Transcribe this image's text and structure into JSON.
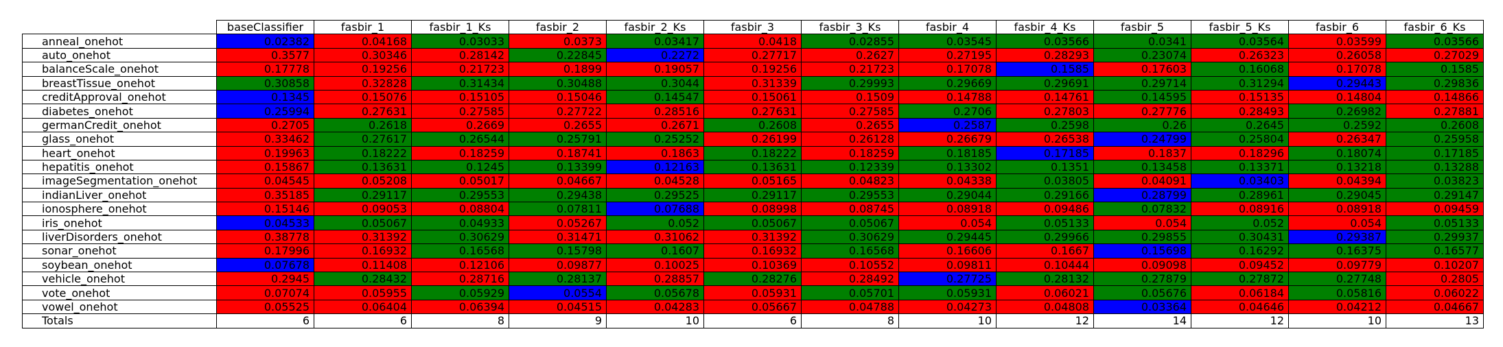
{
  "chart_data": {
    "type": "table",
    "corner": "",
    "columns": [
      "baseClassifier",
      "fasbir_1",
      "fasbir_1_Ks",
      "fasbir_2",
      "fasbir_2_Ks",
      "fasbir_3",
      "fasbir_3_Ks",
      "fasbir_4",
      "fasbir_4_Ks",
      "fasbir_5",
      "fasbir_5_Ks",
      "fasbir_6",
      "fasbir_6_Ks"
    ],
    "rows": [
      {
        "label": "anneal_onehot",
        "values": [
          "0.02382",
          "0.04168",
          "0.03033",
          "0.0373",
          "0.03417",
          "0.0418",
          "0.02855",
          "0.03545",
          "0.03566",
          "0.0341",
          "0.03564",
          "0.03599",
          "0.03566"
        ],
        "colors": [
          "blue",
          "red",
          "green",
          "red",
          "green",
          "red",
          "green",
          "green",
          "green",
          "green",
          "green",
          "red",
          "green"
        ]
      },
      {
        "label": "auto_onehot",
        "values": [
          "0.3577",
          "0.30346",
          "0.28142",
          "0.22845",
          "0.2272",
          "0.27717",
          "0.2627",
          "0.27195",
          "0.28293",
          "0.23074",
          "0.26323",
          "0.26058",
          "0.27029"
        ],
        "colors": [
          "red",
          "red",
          "red",
          "green",
          "blue",
          "red",
          "red",
          "red",
          "red",
          "green",
          "red",
          "red",
          "red"
        ]
      },
      {
        "label": "balanceScale_onehot",
        "values": [
          "0.17778",
          "0.19256",
          "0.21723",
          "0.1899",
          "0.19057",
          "0.19256",
          "0.21723",
          "0.17078",
          "0.1585",
          "0.17603",
          "0.16068",
          "0.17078",
          "0.1585"
        ],
        "colors": [
          "red",
          "red",
          "red",
          "red",
          "red",
          "red",
          "red",
          "red",
          "blue",
          "red",
          "green",
          "red",
          "green"
        ]
      },
      {
        "label": "breastTissue_onehot",
        "values": [
          "0.30858",
          "0.32828",
          "0.31434",
          "0.30488",
          "0.3044",
          "0.31339",
          "0.29993",
          "0.29669",
          "0.29691",
          "0.29714",
          "0.31294",
          "0.29443",
          "0.29836"
        ],
        "colors": [
          "green",
          "red",
          "green",
          "green",
          "green",
          "red",
          "green",
          "green",
          "green",
          "green",
          "green",
          "blue",
          "green"
        ]
      },
      {
        "label": "creditApproval_onehot",
        "values": [
          "0.1345",
          "0.15076",
          "0.15105",
          "0.15046",
          "0.14547",
          "0.15061",
          "0.1509",
          "0.14788",
          "0.14761",
          "0.14595",
          "0.15135",
          "0.14804",
          "0.14866"
        ],
        "colors": [
          "blue",
          "red",
          "red",
          "red",
          "green",
          "red",
          "red",
          "red",
          "red",
          "green",
          "red",
          "red",
          "red"
        ]
      },
      {
        "label": "diabetes_onehot",
        "values": [
          "0.25994",
          "0.27631",
          "0.27585",
          "0.27722",
          "0.28516",
          "0.27631",
          "0.27585",
          "0.2706",
          "0.27803",
          "0.27776",
          "0.28493",
          "0.26982",
          "0.27881"
        ],
        "colors": [
          "blue",
          "red",
          "red",
          "red",
          "red",
          "red",
          "red",
          "green",
          "red",
          "red",
          "red",
          "green",
          "red"
        ]
      },
      {
        "label": "germanCredit_onehot",
        "values": [
          "0.2705",
          "0.2618",
          "0.2669",
          "0.2655",
          "0.2671",
          "0.2608",
          "0.2655",
          "0.2587",
          "0.2598",
          "0.26",
          "0.2645",
          "0.2592",
          "0.2608"
        ],
        "colors": [
          "red",
          "green",
          "red",
          "red",
          "red",
          "green",
          "red",
          "blue",
          "green",
          "green",
          "green",
          "green",
          "green"
        ]
      },
      {
        "label": "glass_onehot",
        "values": [
          "0.33462",
          "0.27617",
          "0.26544",
          "0.25791",
          "0.25252",
          "0.26199",
          "0.26128",
          "0.26679",
          "0.26538",
          "0.24799",
          "0.25804",
          "0.26347",
          "0.25958"
        ],
        "colors": [
          "red",
          "green",
          "green",
          "green",
          "green",
          "red",
          "red",
          "red",
          "red",
          "blue",
          "green",
          "red",
          "green"
        ]
      },
      {
        "label": "heart_onehot",
        "values": [
          "0.19963",
          "0.18222",
          "0.18259",
          "0.18741",
          "0.1863",
          "0.18222",
          "0.18259",
          "0.18185",
          "0.17185",
          "0.1837",
          "0.18296",
          "0.18074",
          "0.17185"
        ],
        "colors": [
          "red",
          "green",
          "red",
          "red",
          "red",
          "green",
          "red",
          "green",
          "blue",
          "red",
          "red",
          "green",
          "green"
        ]
      },
      {
        "label": "hepatitis_onehot",
        "values": [
          "0.15867",
          "0.13631",
          "0.1245",
          "0.13399",
          "0.12163",
          "0.13631",
          "0.12339",
          "0.13302",
          "0.1351",
          "0.13458",
          "0.13371",
          "0.13218",
          "0.13288"
        ],
        "colors": [
          "red",
          "green",
          "green",
          "green",
          "blue",
          "green",
          "green",
          "green",
          "green",
          "green",
          "green",
          "green",
          "green"
        ]
      },
      {
        "label": "imageSegmentation_onehot",
        "values": [
          "0.04545",
          "0.05208",
          "0.05017",
          "0.04667",
          "0.04528",
          "0.05165",
          "0.04823",
          "0.04338",
          "0.03805",
          "0.04091",
          "0.03403",
          "0.04394",
          "0.03823"
        ],
        "colors": [
          "red",
          "red",
          "red",
          "red",
          "red",
          "red",
          "red",
          "red",
          "green",
          "red",
          "blue",
          "red",
          "green"
        ]
      },
      {
        "label": "indianLiver_onehot",
        "values": [
          "0.35185",
          "0.29117",
          "0.29553",
          "0.29438",
          "0.29525",
          "0.29117",
          "0.29553",
          "0.29044",
          "0.29166",
          "0.28799",
          "0.28961",
          "0.29045",
          "0.29147"
        ],
        "colors": [
          "red",
          "green",
          "green",
          "green",
          "green",
          "green",
          "green",
          "green",
          "green",
          "blue",
          "green",
          "green",
          "green"
        ]
      },
      {
        "label": "ionosphere_onehot",
        "values": [
          "0.15146",
          "0.09053",
          "0.08804",
          "0.07811",
          "0.07688",
          "0.08998",
          "0.08745",
          "0.08918",
          "0.09486",
          "0.07832",
          "0.08916",
          "0.08918",
          "0.09459"
        ],
        "colors": [
          "red",
          "red",
          "red",
          "green",
          "blue",
          "red",
          "red",
          "red",
          "red",
          "green",
          "red",
          "red",
          "red"
        ]
      },
      {
        "label": "iris_onehot",
        "values": [
          "0.04533",
          "0.05067",
          "0.04933",
          "0.05267",
          "0.052",
          "0.05067",
          "0.05067",
          "0.054",
          "0.05133",
          "0.054",
          "0.052",
          "0.054",
          "0.05133"
        ],
        "colors": [
          "blue",
          "green",
          "green",
          "red",
          "green",
          "green",
          "green",
          "red",
          "green",
          "red",
          "green",
          "red",
          "green"
        ]
      },
      {
        "label": "liverDisorders_onehot",
        "values": [
          "0.38778",
          "0.31392",
          "0.30629",
          "0.31471",
          "0.31062",
          "0.31392",
          "0.30629",
          "0.29445",
          "0.29966",
          "0.29855",
          "0.30431",
          "0.29387",
          "0.29937"
        ],
        "colors": [
          "red",
          "red",
          "green",
          "red",
          "red",
          "red",
          "green",
          "green",
          "green",
          "green",
          "green",
          "blue",
          "green"
        ]
      },
      {
        "label": "sonar_onehot",
        "values": [
          "0.17996",
          "0.16932",
          "0.16568",
          "0.15798",
          "0.1607",
          "0.16932",
          "0.16568",
          "0.16606",
          "0.1667",
          "0.15698",
          "0.16292",
          "0.16375",
          "0.16577"
        ],
        "colors": [
          "red",
          "red",
          "green",
          "green",
          "green",
          "red",
          "green",
          "red",
          "red",
          "blue",
          "green",
          "green",
          "green"
        ]
      },
      {
        "label": "soybean_onehot",
        "values": [
          "0.07678",
          "0.11408",
          "0.12106",
          "0.09877",
          "0.10025",
          "0.10369",
          "0.10552",
          "0.09811",
          "0.10444",
          "0.09098",
          "0.09452",
          "0.09779",
          "0.10207"
        ],
        "colors": [
          "blue",
          "red",
          "red",
          "red",
          "red",
          "red",
          "red",
          "red",
          "red",
          "red",
          "red",
          "red",
          "red"
        ]
      },
      {
        "label": "vehicle_onehot",
        "values": [
          "0.2945",
          "0.28432",
          "0.28716",
          "0.28137",
          "0.28857",
          "0.28276",
          "0.28492",
          "0.27725",
          "0.28132",
          "0.27879",
          "0.27872",
          "0.27748",
          "0.2805"
        ],
        "colors": [
          "red",
          "green",
          "red",
          "green",
          "red",
          "green",
          "red",
          "blue",
          "green",
          "green",
          "green",
          "green",
          "red"
        ]
      },
      {
        "label": "vote_onehot",
        "values": [
          "0.07074",
          "0.05955",
          "0.05929",
          "0.0554",
          "0.05678",
          "0.05931",
          "0.05701",
          "0.05931",
          "0.06021",
          "0.05676",
          "0.06184",
          "0.05816",
          "0.06022"
        ],
        "colors": [
          "red",
          "red",
          "green",
          "blue",
          "green",
          "red",
          "green",
          "green",
          "red",
          "green",
          "red",
          "green",
          "red"
        ]
      },
      {
        "label": "vowel_onehot",
        "values": [
          "0.05525",
          "0.06404",
          "0.06394",
          "0.04515",
          "0.04283",
          "0.05667",
          "0.04788",
          "0.04273",
          "0.04808",
          "0.03364",
          "0.04646",
          "0.04212",
          "0.04667"
        ],
        "colors": [
          "red",
          "red",
          "red",
          "red",
          "red",
          "red",
          "red",
          "red",
          "red",
          "blue",
          "red",
          "red",
          "red"
        ]
      }
    ],
    "totals": {
      "label": "Totals",
      "values": [
        "6",
        "6",
        "8",
        "9",
        "10",
        "6",
        "8",
        "10",
        "12",
        "14",
        "12",
        "10",
        "13"
      ]
    },
    "palette": {
      "red": "#ff0000",
      "green": "#008000",
      "blue": "#0000ff",
      "white": "#ffffff"
    }
  }
}
